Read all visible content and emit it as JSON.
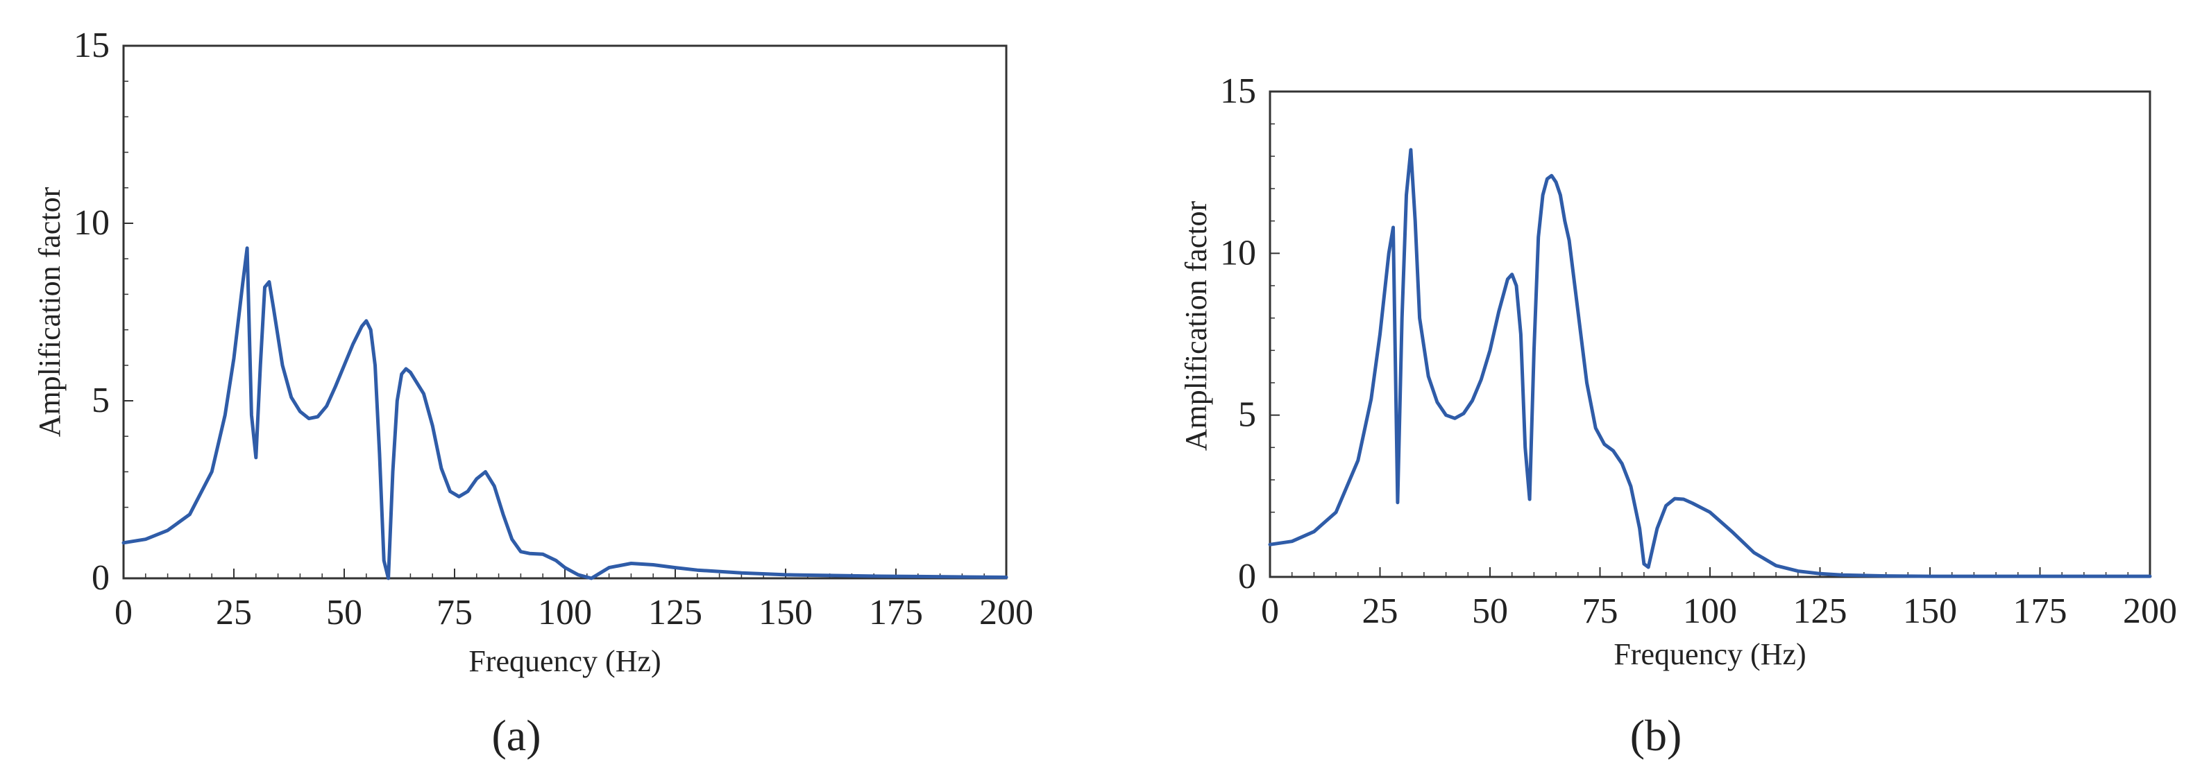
{
  "chart_data": [
    {
      "type": "line",
      "panel_label": "(a)",
      "xlabel": "Frequency (Hz)",
      "ylabel": "Amplification factor",
      "xlim": [
        0,
        200
      ],
      "ylim": [
        0,
        15
      ],
      "xticks": [
        0,
        25,
        50,
        75,
        100,
        125,
        150,
        175,
        200
      ],
      "yticks": [
        0,
        5,
        10,
        15
      ],
      "grid": false,
      "line_color": "#2f5ca8",
      "series": [
        {
          "x": [
            0,
            5,
            10,
            15,
            20,
            23,
            25,
            27,
            28,
            29,
            30,
            31,
            32,
            33,
            34,
            35,
            36,
            38,
            40,
            42,
            44,
            46,
            48,
            50,
            52,
            54,
            55,
            56,
            57,
            58,
            59,
            60,
            61,
            62,
            63,
            64,
            65,
            66,
            68,
            70,
            72,
            74,
            76,
            78,
            80,
            82,
            84,
            86,
            88,
            90,
            92,
            95,
            98,
            100,
            103,
            106,
            108,
            110,
            115,
            120,
            125,
            130,
            140,
            150,
            160,
            170,
            180,
            190,
            200
          ],
          "y": [
            1.0,
            1.1,
            1.35,
            1.8,
            3.0,
            4.6,
            6.2,
            8.3,
            9.3,
            4.6,
            3.4,
            6.0,
            8.2,
            8.35,
            7.6,
            6.8,
            6.0,
            5.1,
            4.7,
            4.5,
            4.55,
            4.85,
            5.4,
            6.0,
            6.6,
            7.1,
            7.25,
            7.0,
            6.0,
            3.5,
            0.5,
            0.0,
            3.0,
            5.0,
            5.75,
            5.9,
            5.8,
            5.6,
            5.2,
            4.3,
            3.1,
            2.45,
            2.3,
            2.45,
            2.8,
            3.0,
            2.6,
            1.8,
            1.1,
            0.75,
            0.7,
            0.68,
            0.5,
            0.3,
            0.1,
            0.0,
            0.15,
            0.3,
            0.42,
            0.38,
            0.3,
            0.23,
            0.15,
            0.1,
            0.08,
            0.06,
            0.05,
            0.04,
            0.03
          ]
        }
      ]
    },
    {
      "type": "line",
      "panel_label": "(b)",
      "xlabel": "Frequency (Hz)",
      "ylabel": "Amplification factor",
      "xlim": [
        0,
        200
      ],
      "ylim": [
        0,
        15
      ],
      "xticks": [
        0,
        25,
        50,
        75,
        100,
        125,
        150,
        175,
        200
      ],
      "yticks": [
        0,
        5,
        10,
        15
      ],
      "grid": false,
      "line_color": "#2f5ca8",
      "series": [
        {
          "x": [
            0,
            5,
            10,
            15,
            20,
            23,
            25,
            27,
            28,
            29,
            30,
            31,
            32,
            33,
            34,
            36,
            38,
            40,
            42,
            44,
            46,
            48,
            50,
            52,
            54,
            55,
            56,
            57,
            58,
            59,
            60,
            61,
            62,
            63,
            64,
            65,
            66,
            67,
            68,
            70,
            72,
            74,
            76,
            78,
            80,
            82,
            84,
            85,
            86,
            88,
            90,
            92,
            94,
            96,
            100,
            105,
            110,
            115,
            120,
            125,
            130,
            140,
            150,
            160,
            170,
            180,
            190,
            200
          ],
          "y": [
            1.0,
            1.1,
            1.4,
            2.0,
            3.6,
            5.5,
            7.5,
            10.0,
            10.8,
            2.3,
            8.0,
            11.8,
            13.2,
            11.0,
            8.0,
            6.2,
            5.4,
            5.0,
            4.9,
            5.05,
            5.45,
            6.1,
            7.0,
            8.2,
            9.2,
            9.35,
            9.0,
            7.5,
            4.0,
            2.4,
            7.0,
            10.5,
            11.8,
            12.3,
            12.4,
            12.2,
            11.8,
            11.0,
            10.4,
            8.2,
            6.0,
            4.6,
            4.1,
            3.9,
            3.5,
            2.8,
            1.5,
            0.4,
            0.3,
            1.5,
            2.2,
            2.42,
            2.4,
            2.28,
            2.0,
            1.4,
            0.75,
            0.35,
            0.18,
            0.1,
            0.06,
            0.03,
            0.02,
            0.02,
            0.02,
            0.02,
            0.02,
            0.02
          ]
        }
      ]
    }
  ]
}
